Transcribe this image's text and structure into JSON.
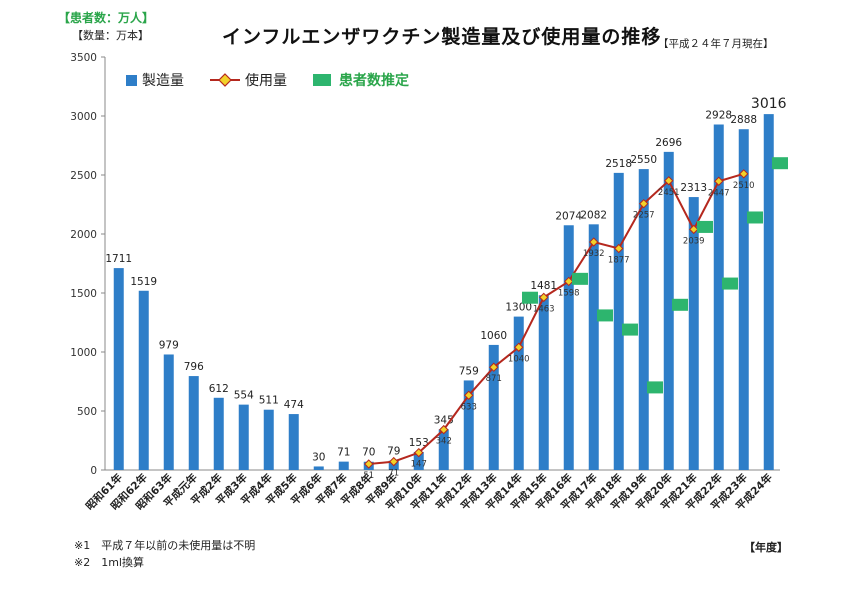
{
  "header": {
    "patient_unit": "【患者数：万人】",
    "quantity_unit": "【数量：万本】",
    "title": "インフルエンザワクチン製造量及び使用量の推移",
    "as_of": "【平成２４年７月現在】"
  },
  "legend": {
    "production": "製造量",
    "usage": "使用量",
    "patients": "患者数推定"
  },
  "footnotes": {
    "note1": "※1　平成７年以前の未使用量は不明",
    "note2": "※2　1ml換算",
    "year_unit": "【年度】"
  },
  "colors": {
    "production": "#2e7ec8",
    "usage_line": "#b5281e",
    "usage_marker": "#f2d22a",
    "patients": "#2db56e"
  },
  "chart_data": {
    "type": "bar",
    "ylim": [
      0,
      3500
    ],
    "y_ticks": [
      0,
      500,
      1000,
      1500,
      2000,
      2500,
      3000,
      3500
    ],
    "categories": [
      "昭和61年",
      "昭和62年",
      "昭和63年",
      "平成元年",
      "平成2年",
      "平成3年",
      "平成4年",
      "平成5年",
      "平成6年",
      "平成7年",
      "平成8年",
      "平成9年",
      "平成10年",
      "平成11年",
      "平成12年",
      "平成13年",
      "平成14年",
      "平成15年",
      "平成16年",
      "平成17年",
      "平成18年",
      "平成19年",
      "平成20年",
      "平成21年",
      "平成22年",
      "平成23年",
      "平成24年"
    ],
    "series": [
      {
        "name": "製造量",
        "type": "bar",
        "values": [
          1711,
          1519,
          979,
          796,
          612,
          554,
          511,
          474,
          30,
          71,
          70,
          79,
          153,
          345,
          759,
          1060,
          1300,
          1481,
          2074,
          2082,
          2518,
          2550,
          2696,
          2313,
          2928,
          2888,
          3016
        ],
        "labels": [
          "1711",
          "1519",
          "979",
          "796",
          "612",
          "554",
          "511",
          "474",
          "30",
          "71",
          "70",
          "79",
          "153",
          "345",
          "759",
          "1060",
          "1300",
          "1481",
          "2074",
          "2082",
          "2518",
          "2550",
          "2696",
          "2313",
          "2928",
          "2888",
          "3016"
        ]
      },
      {
        "name": "使用量",
        "type": "line",
        "values": [
          null,
          null,
          null,
          null,
          null,
          null,
          null,
          null,
          null,
          null,
          51,
          71,
          147,
          342,
          633,
          871,
          1040,
          1463,
          1598,
          1932,
          1877,
          2257,
          2451,
          2039,
          2447,
          2510,
          null
        ],
        "labels": [
          "",
          "",
          "",
          "",
          "",
          "",
          "",
          "",
          "",
          "",
          "51",
          "71",
          "147",
          "342",
          "633",
          "871",
          "1040",
          "1463",
          "1598",
          "1932",
          "1877",
          "2257",
          "2451",
          "2039",
          "2447",
          "2510",
          ""
        ]
      },
      {
        "name": "患者数推定",
        "type": "marker",
        "values": [
          null,
          null,
          null,
          null,
          null,
          null,
          null,
          null,
          null,
          null,
          null,
          null,
          null,
          null,
          null,
          null,
          1460,
          null,
          1620,
          1310,
          1190,
          700,
          1400,
          2060,
          1580,
          2140,
          2600
        ]
      }
    ]
  }
}
